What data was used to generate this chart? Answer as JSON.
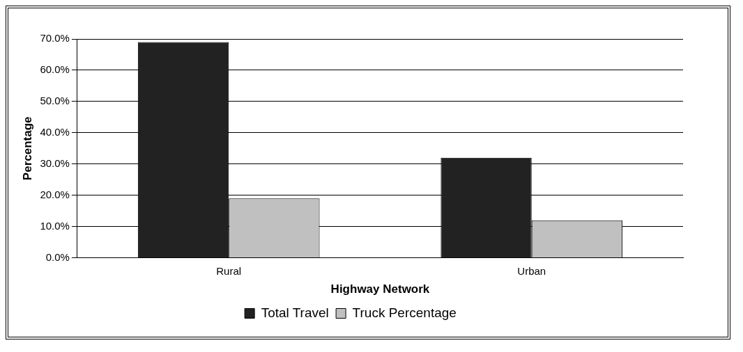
{
  "chart_data": {
    "type": "bar",
    "xlabel": "Highway Network",
    "ylabel": "Percentage",
    "categories": [
      "Rural",
      "Urban"
    ],
    "series": [
      {
        "name": "Total Travel",
        "color": "#222222",
        "values": [
          69,
          32
        ]
      },
      {
        "name": "Truck Percentage",
        "color": "#c0c0c0",
        "values": [
          19,
          12
        ]
      }
    ],
    "ylim": [
      0,
      70
    ],
    "yticks": [
      {
        "value": 0,
        "label": "0.0%"
      },
      {
        "value": 10,
        "label": "10.0%"
      },
      {
        "value": 20,
        "label": "20.0%"
      },
      {
        "value": 30,
        "label": "30.0%"
      },
      {
        "value": 40,
        "label": "40.0%"
      },
      {
        "value": 50,
        "label": "50.0%"
      },
      {
        "value": 60,
        "label": "60.0%"
      },
      {
        "value": 70,
        "label": "70.0%"
      }
    ],
    "grid": "y",
    "legend": "bottom"
  }
}
